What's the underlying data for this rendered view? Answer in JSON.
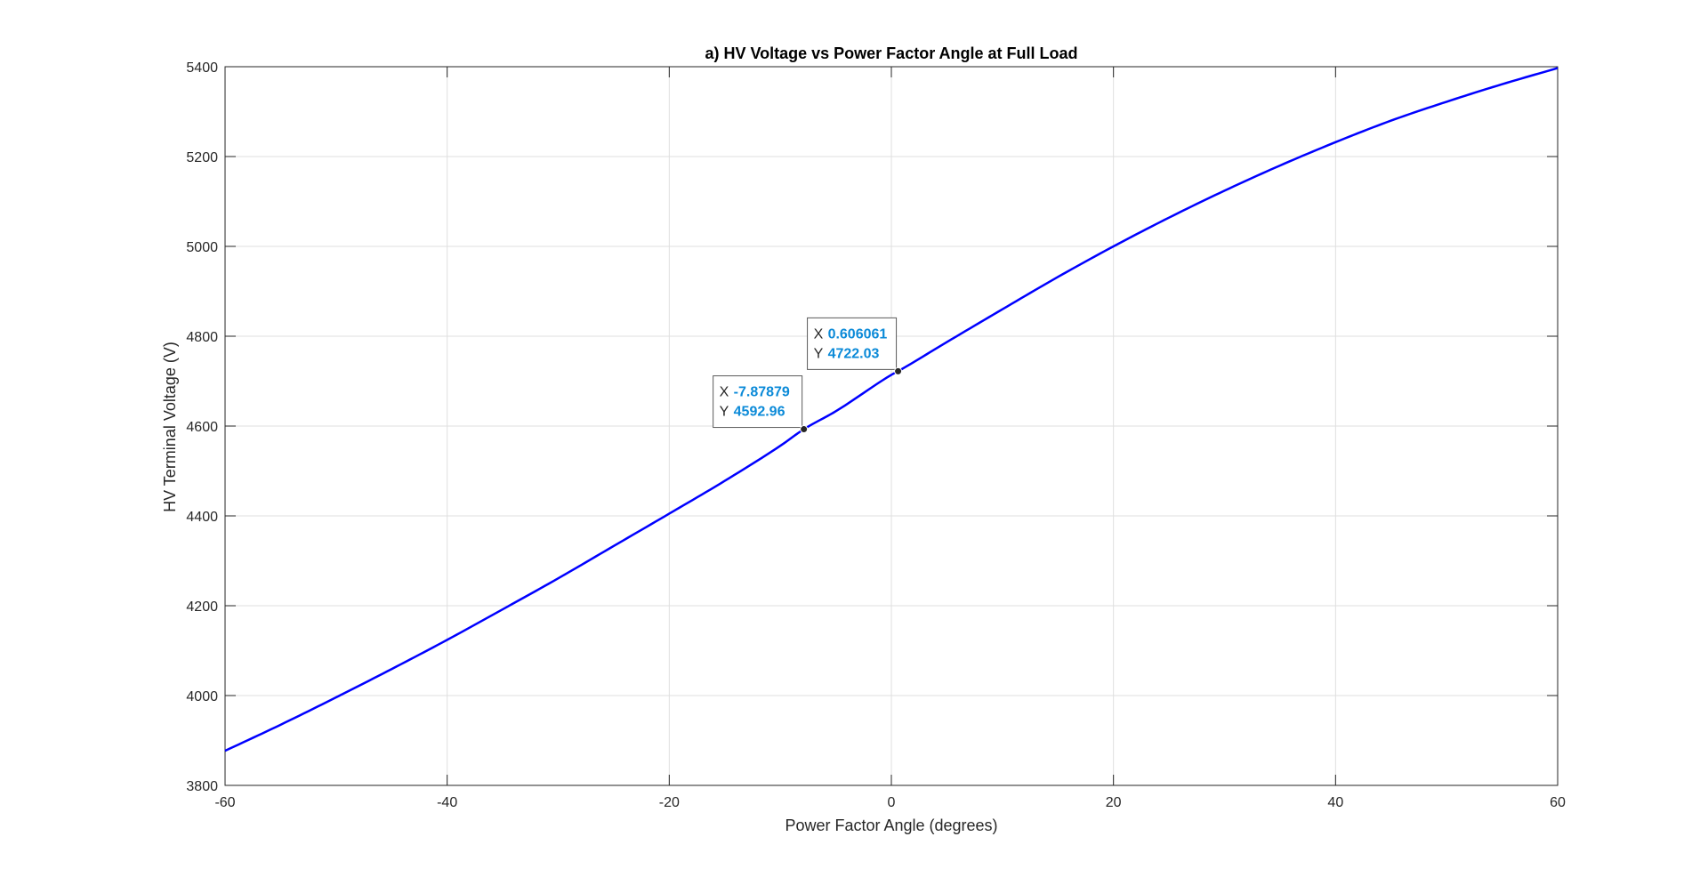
{
  "chart_data": {
    "type": "line",
    "title": "a) HV Voltage vs Power Factor Angle at Full Load",
    "xlabel": "Power Factor Angle (degrees)",
    "ylabel": "HV Terminal Voltage (V)",
    "xlim": [
      -60,
      60
    ],
    "ylim": [
      3800,
      5400
    ],
    "xticks": [
      -60,
      -40,
      -20,
      0,
      20,
      40,
      60
    ],
    "yticks": [
      3800,
      4000,
      4200,
      4400,
      4600,
      4800,
      5000,
      5200,
      5400
    ],
    "grid": true,
    "series": [
      {
        "color": "#0000ff",
        "x": [
          -60,
          -55,
          -50,
          -45,
          -40,
          -35,
          -30,
          -25,
          -20,
          -15,
          -10,
          -7.87879,
          -5,
          0,
          0.606061,
          5,
          10,
          15,
          20,
          25,
          30,
          35,
          40,
          45,
          50,
          55,
          60
        ],
        "y": [
          3877,
          3935,
          3996,
          4059,
          4124,
          4192,
          4261,
          4333,
          4405,
          4478,
          4556,
          4592.96,
          4633,
          4714,
          4722.03,
          4787,
          4860,
          4932,
          5000,
          5064,
          5124,
          5180,
          5232,
          5280,
          5322,
          5361,
          5397
        ]
      }
    ],
    "datatips": [
      {
        "x_key": "X",
        "x_value": "-7.87879",
        "y_key": "Y",
        "y_value": "4592.96",
        "x": -7.87879,
        "y": 4592.96
      },
      {
        "x_key": "X",
        "x_value": "0.606061",
        "y_key": "Y",
        "y_value": "4722.03",
        "x": 0.606061,
        "y": 4722.03
      }
    ]
  }
}
